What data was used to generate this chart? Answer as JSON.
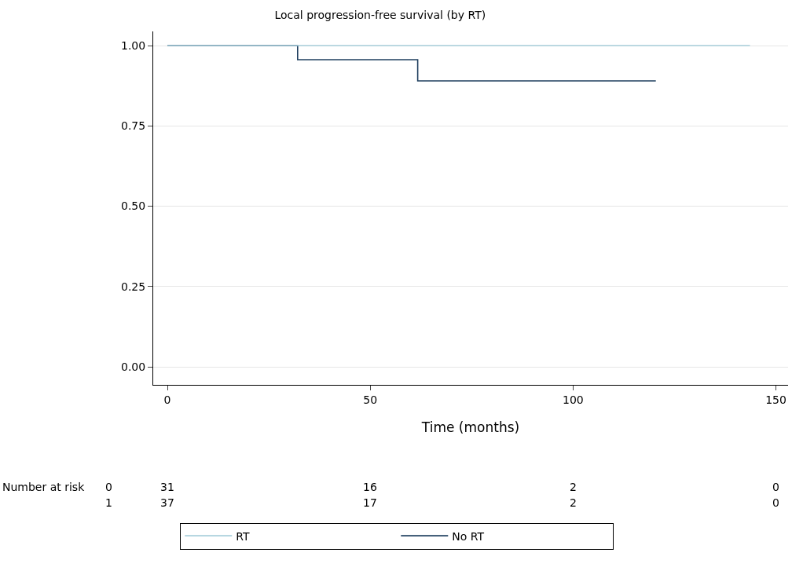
{
  "chart_data": {
    "type": "step",
    "title": "Local progression-free survival (by RT)",
    "xlabel": "Time (months)",
    "series": [
      {
        "name": "RT",
        "color": "#a8cfdb",
        "x": [
          0,
          143.6
        ],
        "values": [
          1.0,
          1.0
        ]
      },
      {
        "name": "No RT",
        "color": "#1f3f5f",
        "x": [
          0,
          32.1,
          61.7,
          120.4
        ],
        "values": [
          1.0,
          0.956,
          0.89,
          0.89
        ]
      }
    ],
    "xlim": [
      -3.5,
      153
    ],
    "xticks": [
      0,
      50,
      100,
      150
    ],
    "ylim": [
      -0.056,
      1.044
    ],
    "yticks": [
      {
        "value": 0,
        "label": "0.00"
      },
      {
        "value": 0.25,
        "label": "0.25"
      },
      {
        "value": 0.5,
        "label": "0.50"
      },
      {
        "value": 0.75,
        "label": "0.75"
      },
      {
        "value": 1,
        "label": "1.00"
      }
    ],
    "grid": "y",
    "legend": "bottom",
    "marker": "none",
    "line_style": "solid",
    "annotations": [
      "Number at risk",
      "0",
      "31",
      "16",
      "2",
      "0",
      "1",
      "37",
      "17",
      "2",
      "0"
    ]
  }
}
